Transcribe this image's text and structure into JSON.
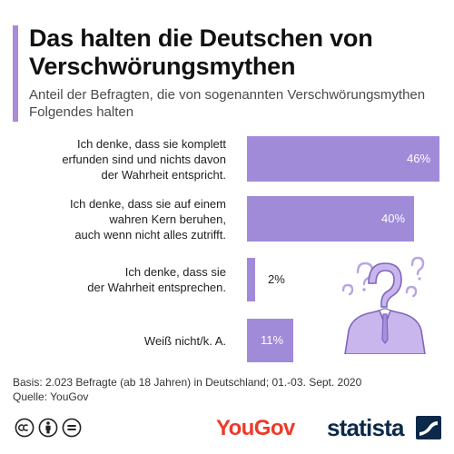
{
  "header": {
    "title": "Das halten die Deutschen von Verschwörungsmythen",
    "subtitle": "Anteil der Befragten, die von sogenannten Verschwörungsmythen Folgendes halten"
  },
  "chart_data": {
    "type": "bar",
    "orientation": "horizontal",
    "categories": [
      [
        "Ich denke, dass sie komplett",
        "erfunden sind und nichts davon",
        "der Wahrheit entspricht."
      ],
      [
        "Ich denke, dass sie auf einem",
        "wahren Kern beruhen,",
        "auch wenn nicht alles zutrifft."
      ],
      [
        "Ich denke, dass sie",
        "der Wahrheit entsprechen."
      ],
      [
        "Weiß nicht/k. A."
      ]
    ],
    "values": [
      46,
      40,
      2,
      11
    ],
    "value_labels": [
      "46%",
      "40%",
      "2%",
      "11%"
    ],
    "unit": "%",
    "xlim": [
      0,
      46
    ],
    "grid": false,
    "legend": "none",
    "bar_color": "#a08bd8"
  },
  "footer": {
    "basis": "Basis: 2.023 Befragte (ab 18 Jahren) in Deutschland; 01.-03. Sept. 2020",
    "source": "Quelle: YouGov"
  },
  "branding": {
    "yougov": "YouGov",
    "statista": "statista"
  },
  "icons": {
    "license": [
      "cc-icon",
      "by-icon",
      "equals-icon"
    ],
    "illustration": "question-mark-person-icon"
  }
}
